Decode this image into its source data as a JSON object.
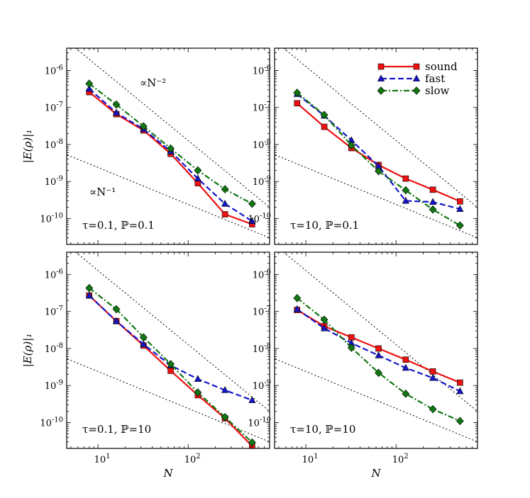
{
  "chart_data": [
    {
      "type": "line",
      "panel": "top-left",
      "annotation": "τ=0.1, ℙ=0.1",
      "xscale": "log",
      "yscale": "log",
      "xlim": [
        4.5,
        800
      ],
      "ylim": [
        2e-11,
        4e-06
      ],
      "ylabel": "|E(ρ)|₁",
      "xlabel": "",
      "guide_labels": [
        "∝N⁻²",
        "∝N⁻¹"
      ],
      "x": [
        8,
        16,
        32,
        64,
        128,
        256,
        512
      ],
      "series": [
        {
          "name": "sound",
          "color": "#ee1111",
          "marker": "square",
          "values": [
            2.6e-07,
            6.6e-08,
            2.4e-08,
            5.6e-09,
            9e-10,
            1.3e-10,
            7e-11
          ]
        },
        {
          "name": "fast",
          "color": "#1515cc",
          "marker": "triangle",
          "values": [
            3.2e-07,
            7.2e-08,
            2.6e-08,
            6.5e-09,
            1.2e-09,
            2.5e-10,
            8.5e-11
          ]
        },
        {
          "name": "slow",
          "color": "#117711",
          "marker": "diamond",
          "values": [
            4.4e-07,
            1.2e-07,
            3.1e-08,
            7.8e-09,
            2e-09,
            6.2e-10,
            2.5e-10
          ]
        }
      ]
    },
    {
      "type": "line",
      "panel": "top-right",
      "annotation": "τ=10, ℙ=0.1",
      "xscale": "log",
      "yscale": "log",
      "xlim": [
        4.5,
        800
      ],
      "ylim": [
        2e-11,
        4e-06
      ],
      "legend": "top-right",
      "x": [
        8,
        16,
        32,
        64,
        128,
        256,
        512
      ],
      "series": [
        {
          "name": "sound",
          "color": "#ee1111",
          "marker": "square",
          "values": [
            1.3e-07,
            3e-08,
            8e-09,
            2.8e-09,
            1.2e-09,
            6e-10,
            2.9e-10
          ]
        },
        {
          "name": "fast",
          "color": "#1515cc",
          "marker": "triangle",
          "values": [
            2.3e-07,
            6e-08,
            1.3e-08,
            2.6e-09,
            3e-10,
            2.8e-10,
            1.8e-10
          ]
        },
        {
          "name": "slow",
          "color": "#117711",
          "marker": "diamond",
          "values": [
            2.5e-07,
            6.3e-08,
            9.5e-09,
            1.9e-09,
            5.8e-10,
            1.75e-10,
            6.5e-11
          ]
        }
      ]
    },
    {
      "type": "line",
      "panel": "bottom-left",
      "annotation": "τ=0.1, ℙ=10",
      "xscale": "log",
      "yscale": "log",
      "xlim": [
        4.5,
        800
      ],
      "ylim": [
        2e-11,
        4e-06
      ],
      "ylabel": "|E(ρ)|₁",
      "xlabel": "N",
      "x": [
        8,
        16,
        32,
        64,
        128,
        256,
        512
      ],
      "series": [
        {
          "name": "sound",
          "color": "#ee1111",
          "marker": "square",
          "values": [
            2.7e-07,
            5.5e-08,
            1.2e-08,
            2.5e-09,
            5.5e-10,
            1.3e-10,
            2.3e-11
          ]
        },
        {
          "name": "fast",
          "color": "#1515cc",
          "marker": "triangle",
          "values": [
            2.7e-07,
            5.5e-08,
            1.3e-08,
            3.5e-09,
            1.5e-09,
            7.5e-10,
            4e-10
          ]
        },
        {
          "name": "slow",
          "color": "#117711",
          "marker": "diamond",
          "values": [
            4.3e-07,
            1.15e-07,
            2e-08,
            3.8e-09,
            6.5e-10,
            1.4e-10,
            2.9e-11
          ]
        }
      ]
    },
    {
      "type": "line",
      "panel": "bottom-right",
      "annotation": "τ=10, ℙ=10",
      "xscale": "log",
      "yscale": "log",
      "xlim": [
        4.5,
        800
      ],
      "ylim": [
        2e-11,
        4e-06
      ],
      "xlabel": "N",
      "x": [
        8,
        16,
        32,
        64,
        128,
        256,
        512
      ],
      "series": [
        {
          "name": "sound",
          "color": "#ee1111",
          "marker": "square",
          "values": [
            1.1e-07,
            4e-08,
            2e-08,
            1e-08,
            5e-09,
            2.4e-09,
            1.2e-09
          ]
        },
        {
          "name": "fast",
          "color": "#1515cc",
          "marker": "triangle",
          "values": [
            1.15e-07,
            3.5e-08,
            1.4e-08,
            6.5e-09,
            3e-09,
            1.6e-09,
            7e-10
          ]
        },
        {
          "name": "slow",
          "color": "#117711",
          "marker": "diamond",
          "values": [
            2.3e-07,
            6e-08,
            1.05e-08,
            2.2e-09,
            6e-10,
            2.3e-10,
            1.1e-10
          ]
        }
      ]
    }
  ]
}
